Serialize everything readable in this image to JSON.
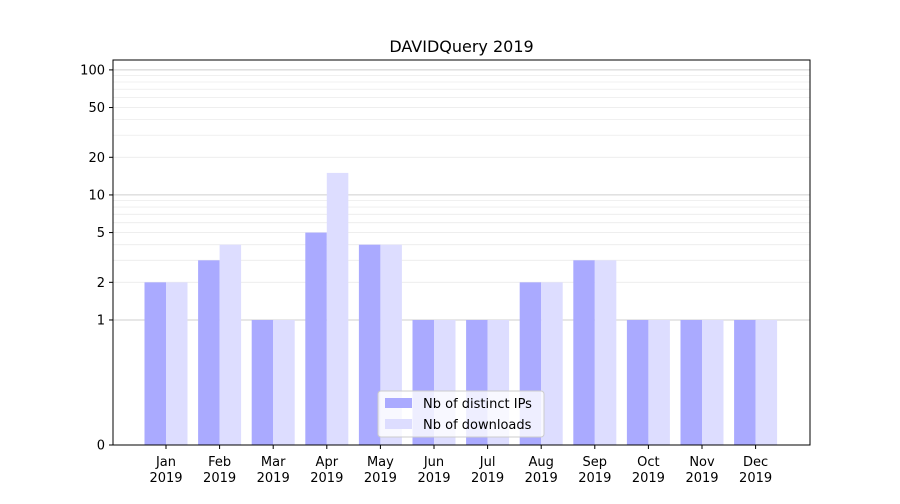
{
  "chart_data": {
    "type": "bar",
    "title": "DAVIDQuery 2019",
    "xlabel": "",
    "ylabel": "",
    "yscale": "symlog",
    "ylim": [
      0,
      120
    ],
    "yticks": [
      "0",
      "1",
      "2",
      "5",
      "10",
      "20",
      "50",
      "100"
    ],
    "grid": "horizontal",
    "legend_position": "bottom-center",
    "categories": [
      {
        "month": "Jan",
        "year": "2019"
      },
      {
        "month": "Feb",
        "year": "2019"
      },
      {
        "month": "Mar",
        "year": "2019"
      },
      {
        "month": "Apr",
        "year": "2019"
      },
      {
        "month": "May",
        "year": "2019"
      },
      {
        "month": "Jun",
        "year": "2019"
      },
      {
        "month": "Jul",
        "year": "2019"
      },
      {
        "month": "Aug",
        "year": "2019"
      },
      {
        "month": "Sep",
        "year": "2019"
      },
      {
        "month": "Oct",
        "year": "2019"
      },
      {
        "month": "Nov",
        "year": "2019"
      },
      {
        "month": "Dec",
        "year": "2019"
      }
    ],
    "series": [
      {
        "name": "Nb of distinct IPs",
        "color": "#aaaaff",
        "values": [
          2,
          3,
          1,
          5,
          4,
          1,
          1,
          2,
          3,
          1,
          1,
          1
        ]
      },
      {
        "name": "Nb of downloads",
        "color": "#ddddff",
        "values": [
          2,
          4,
          1,
          15,
          4,
          1,
          1,
          2,
          3,
          1,
          1,
          1
        ]
      }
    ]
  }
}
